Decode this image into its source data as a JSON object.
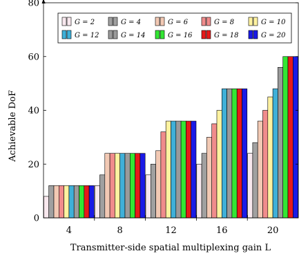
{
  "chart_data": {
    "type": "bar",
    "xlabel": "Transmitter-side spatial multiplexing gain L",
    "ylabel": "Achievable DoF",
    "categories": [
      "4",
      "8",
      "12",
      "16",
      "20"
    ],
    "ylim": [
      0,
      80
    ],
    "yticks": [
      "0",
      "20",
      "40",
      "60",
      "80"
    ],
    "grid": false,
    "legend_position": "top",
    "series": [
      {
        "name": "G = 2",
        "color": "#f8e8ee",
        "values": [
          8,
          12,
          16,
          20,
          24
        ]
      },
      {
        "name": "G = 4",
        "color": "#a0a0a0",
        "values": [
          12,
          16,
          20,
          24,
          28
        ]
      },
      {
        "name": "G = 6",
        "color": "#f2c9b4",
        "values": [
          12,
          24,
          25,
          30,
          36
        ]
      },
      {
        "name": "G = 8",
        "color": "#f08c8c",
        "values": [
          12,
          24,
          32,
          35,
          40
        ]
      },
      {
        "name": "G = 10",
        "color": "#fff2a0",
        "values": [
          12,
          24,
          36,
          40,
          45
        ]
      },
      {
        "name": "G = 12",
        "color": "#3fb0d8",
        "values": [
          12,
          24,
          36,
          48,
          48
        ]
      },
      {
        "name": "G = 14",
        "color": "#9a9a9a",
        "values": [
          12,
          24,
          36,
          48,
          56
        ]
      },
      {
        "name": "G = 16",
        "color": "#33e633",
        "values": [
          12,
          24,
          36,
          48,
          60
        ]
      },
      {
        "name": "G = 18",
        "color": "#e61a1a",
        "values": [
          12,
          24,
          36,
          48,
          60
        ]
      },
      {
        "name": "G = 20",
        "color": "#1a1ae6",
        "values": [
          12,
          24,
          36,
          48,
          60
        ]
      }
    ]
  }
}
